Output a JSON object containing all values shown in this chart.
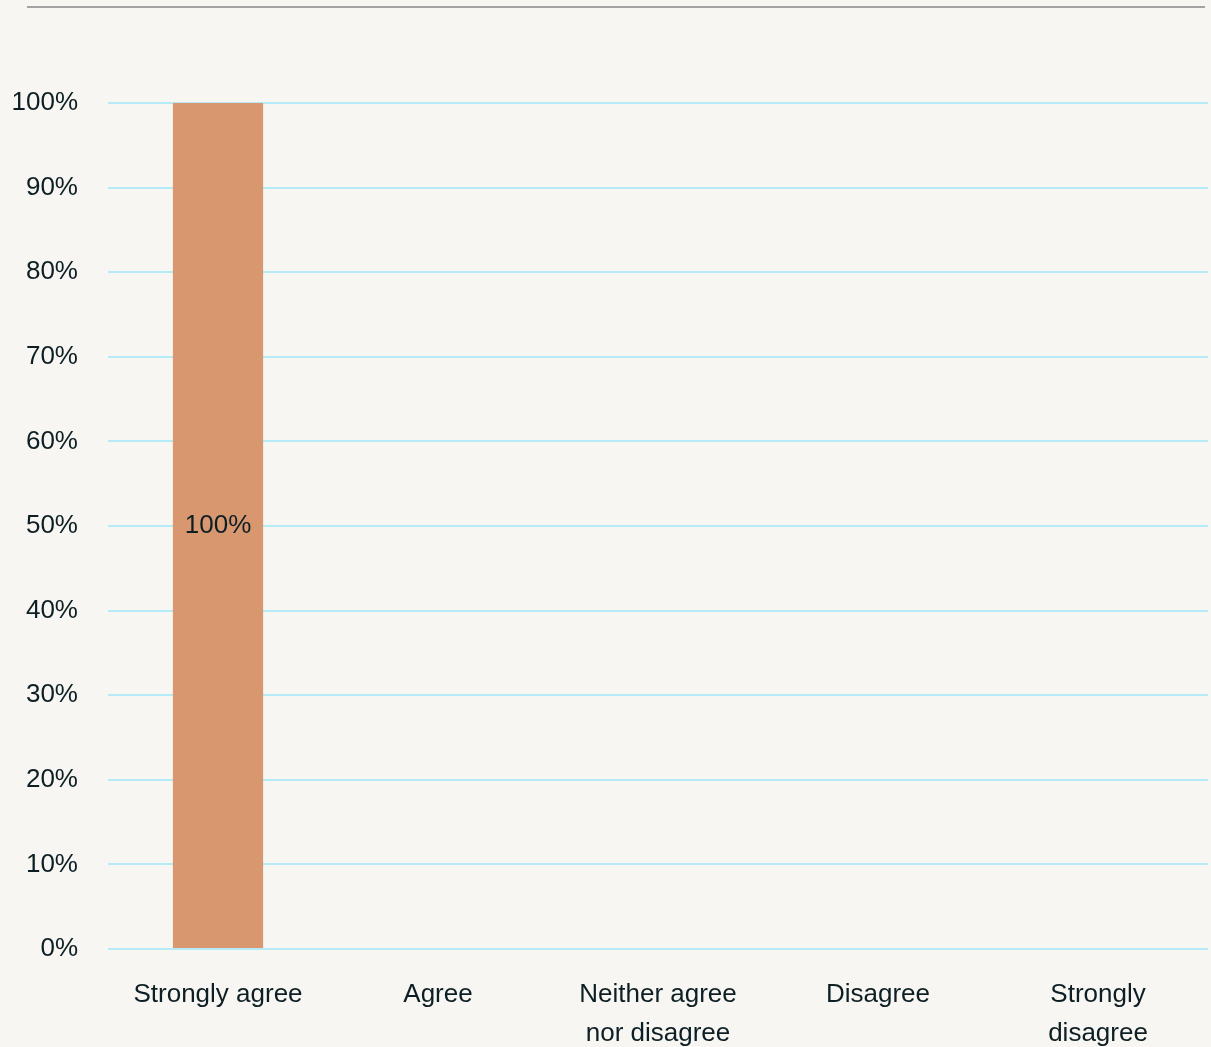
{
  "chart_data": {
    "type": "bar",
    "categories": [
      "Strongly agree",
      "Agree",
      "Neither agree nor disagree",
      "Disagree",
      "Strongly disagree"
    ],
    "values": [
      100,
      0,
      0,
      0,
      0
    ],
    "color": "#d8976f",
    "value_labels": [
      "100%",
      null,
      null,
      null,
      null
    ],
    "ylim": [
      0,
      100
    ],
    "yticks": [
      {
        "value": 0,
        "label": "0%"
      },
      {
        "value": 10,
        "label": "10%"
      },
      {
        "value": 20,
        "label": "20%"
      },
      {
        "value": 30,
        "label": "30%"
      },
      {
        "value": 40,
        "label": "40%"
      },
      {
        "value": 50,
        "label": "50%"
      },
      {
        "value": 60,
        "label": "60%"
      },
      {
        "value": 70,
        "label": "70%"
      },
      {
        "value": 80,
        "label": "80%"
      },
      {
        "value": 90,
        "label": "90%"
      },
      {
        "value": 100,
        "label": "100%"
      }
    ],
    "grid": "y"
  }
}
